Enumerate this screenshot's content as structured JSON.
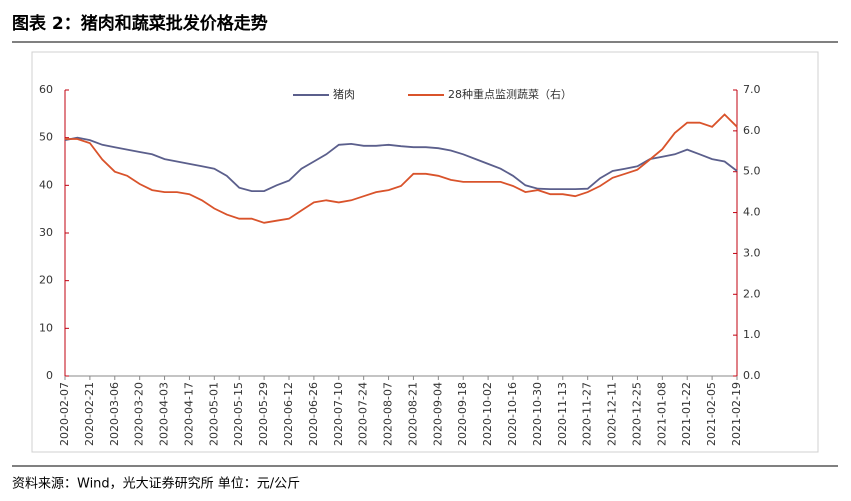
{
  "chart_data": {
    "type": "line",
    "title": "图表 2：猪肉和蔬菜批发价格走势",
    "source": "资料来源：Wind，光大证券研究所 单位：元/公斤",
    "x": [
      "2020-02-07",
      "2020-02-14",
      "2020-02-21",
      "2020-02-28",
      "2020-03-06",
      "2020-03-13",
      "2020-03-20",
      "2020-03-27",
      "2020-04-03",
      "2020-04-10",
      "2020-04-17",
      "2020-04-24",
      "2020-05-01",
      "2020-05-08",
      "2020-05-15",
      "2020-05-22",
      "2020-05-29",
      "2020-06-05",
      "2020-06-12",
      "2020-06-19",
      "2020-06-26",
      "2020-07-03",
      "2020-07-10",
      "2020-07-17",
      "2020-07-24",
      "2020-07-31",
      "2020-08-07",
      "2020-08-14",
      "2020-08-21",
      "2020-08-28",
      "2020-09-04",
      "2020-09-11",
      "2020-09-18",
      "2020-09-25",
      "2020-10-02",
      "2020-10-09",
      "2020-10-16",
      "2020-10-23",
      "2020-10-30",
      "2020-11-06",
      "2020-11-13",
      "2020-11-20",
      "2020-11-27",
      "2020-12-04",
      "2020-12-11",
      "2020-12-18",
      "2020-12-25",
      "2021-01-01",
      "2021-01-08",
      "2021-01-15",
      "2021-01-22",
      "2021-01-29",
      "2021-02-05",
      "2021-02-12",
      "2021-02-19"
    ],
    "series": [
      {
        "name": "猪肉",
        "color": "#5b5f8c",
        "axis": "y",
        "values": [
          49.5,
          50,
          49.5,
          48.5,
          48,
          47.5,
          47,
          46.5,
          45.5,
          45,
          44.5,
          44,
          43.5,
          42,
          39.5,
          38.8,
          38.8,
          40,
          41,
          43.5,
          45,
          46.5,
          48.5,
          48.7,
          48.3,
          48.3,
          48.5,
          48.2,
          48,
          48,
          47.8,
          47.3,
          46.5,
          45.5,
          44.5,
          43.5,
          42,
          40,
          39.3,
          39.2,
          39.2,
          39.2,
          39.3,
          41.5,
          43,
          43.5,
          44,
          45.5,
          46,
          46.5,
          47.5,
          46.5,
          45.5,
          45,
          43
        ]
      },
      {
        "name": "28种重点监测蔬菜（右）",
        "color": "#d9532b",
        "axis": "y2",
        "values": [
          5.8,
          5.8,
          5.7,
          5.3,
          5.0,
          4.9,
          4.7,
          4.55,
          4.5,
          4.5,
          4.45,
          4.3,
          4.1,
          3.95,
          3.85,
          3.85,
          3.75,
          3.8,
          3.85,
          4.05,
          4.25,
          4.3,
          4.25,
          4.3,
          4.4,
          4.5,
          4.55,
          4.65,
          4.95,
          4.95,
          4.9,
          4.8,
          4.75,
          4.75,
          4.75,
          4.75,
          4.65,
          4.5,
          4.55,
          4.45,
          4.45,
          4.4,
          4.5,
          4.65,
          4.85,
          4.95,
          5.05,
          5.3,
          5.55,
          5.95,
          6.2,
          6.2,
          6.1,
          6.4,
          6.1
        ]
      }
    ],
    "ylim": [
      0,
      60
    ],
    "yticks": [
      0,
      10,
      20,
      30,
      40,
      50,
      60
    ],
    "y2lim": [
      0,
      7
    ],
    "y2ticks": [
      {
        "value": 0,
        "label": "0.0"
      },
      {
        "value": 1,
        "label": "1.0"
      },
      {
        "value": 2,
        "label": "2.0"
      },
      {
        "value": 3,
        "label": "3.0"
      },
      {
        "value": 4,
        "label": "4.0"
      },
      {
        "value": 5,
        "label": "5.0"
      },
      {
        "value": 6,
        "label": "6.0"
      },
      {
        "value": 7,
        "label": "7.0"
      }
    ],
    "axis_color": "#c0000f"
  }
}
